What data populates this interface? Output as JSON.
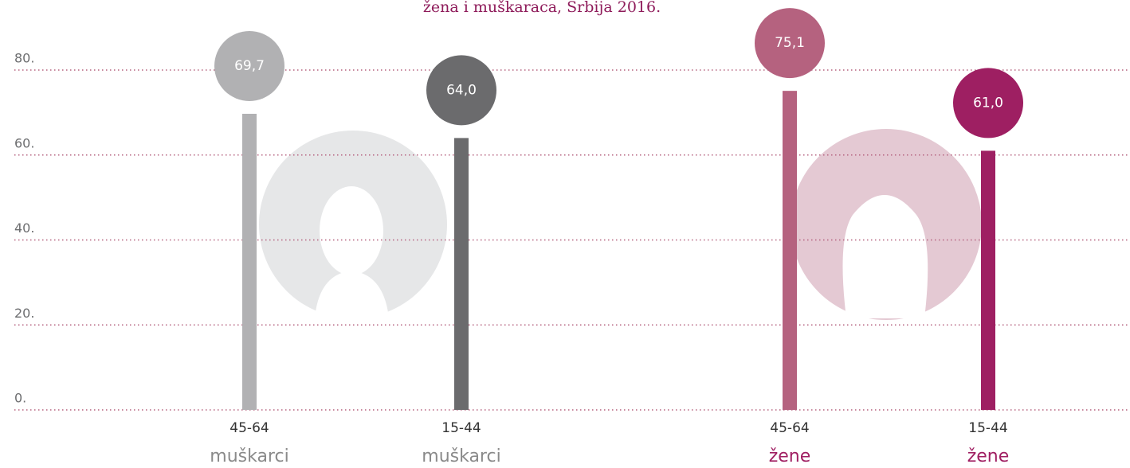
{
  "chart_data": {
    "type": "lollipop",
    "title": "žena i muškaraca, Srbija 2016.",
    "categories": [
      "45-64",
      "15-44",
      "45-64",
      "15-44"
    ],
    "groups": [
      "muškarci",
      "muškarci",
      "žene",
      "žene"
    ],
    "group_colors": [
      "#8a8a8a",
      "#8a8a8a",
      "#a01f62",
      "#a01f62"
    ],
    "values": [
      69.7,
      64.0,
      75.1,
      61.0
    ],
    "value_labels": [
      "69,7",
      "64,0",
      "75,1",
      "61,0"
    ],
    "colors": [
      "#b1b1b3",
      "#6b6b6d",
      "#b5627f",
      "#9e1f62"
    ],
    "ylim": [
      0,
      80
    ],
    "yticks": [
      {
        "value": 0,
        "label": "0."
      },
      {
        "value": 20,
        "label": "20."
      },
      {
        "value": 40,
        "label": "40."
      },
      {
        "value": 60,
        "label": "60."
      },
      {
        "value": 80,
        "label": "80."
      }
    ],
    "grid": true
  }
}
